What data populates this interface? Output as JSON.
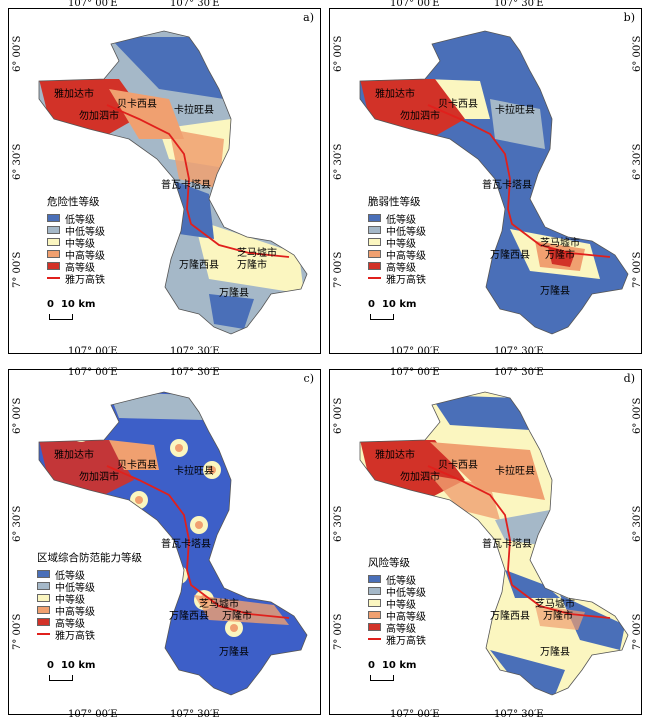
{
  "coords": {
    "lon_left": "107° 00′E",
    "lon_right": "107° 30′E",
    "lat_1": "6° 00′S",
    "lat_2": "6° 30′S",
    "lat_3": "7° 00′S"
  },
  "places": {
    "p1": "雅加达市",
    "p2": "贝卡西县",
    "p3": "卡拉旺县",
    "p4": "勿加泗市",
    "p5": "普瓦卡塔县",
    "p6": "芝马墟市",
    "p7": "万隆西县",
    "p8": "万隆市",
    "p9": "万隆县"
  },
  "legend_items": [
    "低等级",
    "中低等级",
    "中等级",
    "中高等级",
    "高等级",
    "雅万高铁"
  ],
  "colors": {
    "low": "#4a6fb8",
    "midlow": "#a5b8c8",
    "mid": "#fbf6c0",
    "midhigh": "#f0a070",
    "high": "#d23228",
    "rail": "#e0201c"
  },
  "scale": {
    "zero": "0",
    "label": "10 km"
  },
  "panels": [
    {
      "letter": "a)",
      "legend_title": "危险性等级"
    },
    {
      "letter": "b)",
      "legend_title": "脆弱性等级"
    },
    {
      "letter": "c)",
      "legend_title": "区域综合防范能力等级"
    },
    {
      "letter": "d)",
      "legend_title": "风险等级"
    }
  ]
}
